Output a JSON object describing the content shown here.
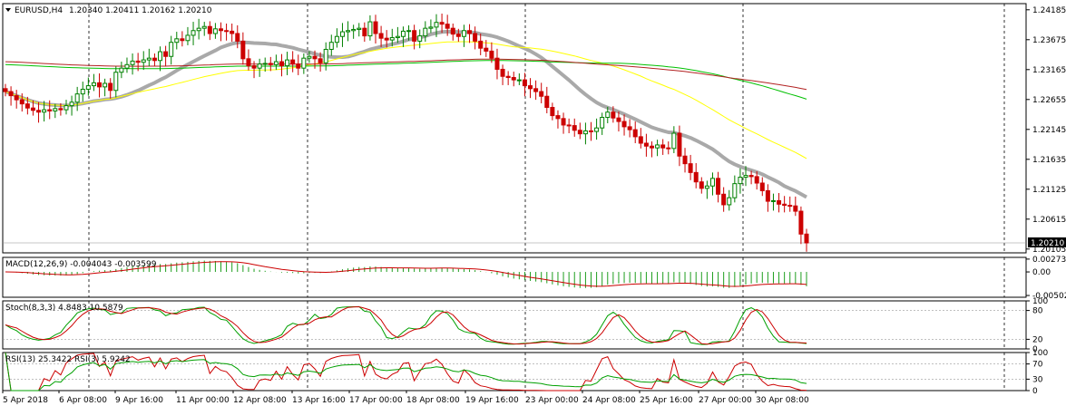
{
  "chart_data": {
    "type": "candlestick",
    "symbol_label": "EURUSD,H4",
    "ohlc_label": "1.20340 1.20411 1.20162 1.20210",
    "price_axis": {
      "ticks": [
        "1.24185",
        "1.23675",
        "1.23165",
        "1.22655",
        "1.22145",
        "1.21635",
        "1.21125",
        "1.20615",
        "1.20105"
      ],
      "tick_values": [
        1.24185,
        1.23675,
        1.23165,
        1.22655,
        1.22145,
        1.21635,
        1.21125,
        1.20615,
        1.20105
      ],
      "range": [
        1.2004,
        1.2429
      ],
      "current_price": "1.20210",
      "current_value": 1.2021
    },
    "time_axis": [
      "5 Apr 2018",
      "6 Apr 08:00",
      "9 Apr 16:00",
      "11 Apr 00:00",
      "12 Apr 08:00",
      "13 Apr 16:00",
      "17 Apr 00:00",
      "18 Apr 08:00",
      "19 Apr 16:00",
      "23 Apr 00:00",
      "24 Apr 08:00",
      "25 Apr 16:00",
      "27 Apr 00:00",
      "30 Apr 08:00"
    ],
    "closes": [
      1.2279,
      1.2272,
      1.2265,
      1.2258,
      1.2251,
      1.2247,
      1.2244,
      1.2248,
      1.2246,
      1.225,
      1.2248,
      1.2255,
      1.2261,
      1.2275,
      1.2283,
      1.2289,
      1.2294,
      1.2287,
      1.2293,
      1.2281,
      1.2312,
      1.2319,
      1.2325,
      1.2331,
      1.2329,
      1.2333,
      1.2336,
      1.2332,
      1.2347,
      1.2339,
      1.2363,
      1.2369,
      1.2366,
      1.2375,
      1.2383,
      1.2387,
      1.239,
      1.2378,
      1.2386,
      1.2383,
      1.2382,
      1.2378,
      1.2365,
      1.2335,
      1.2323,
      1.2319,
      1.2326,
      1.2327,
      1.2325,
      1.233,
      1.2323,
      1.2333,
      1.2326,
      1.2319,
      1.2336,
      1.2339,
      1.2335,
      1.2328,
      1.2351,
      1.2363,
      1.2373,
      1.2381,
      1.2383,
      1.2385,
      1.2387,
      1.2374,
      1.2398,
      1.2378,
      1.237,
      1.2367,
      1.2371,
      1.2373,
      1.2382,
      1.2383,
      1.2365,
      1.2374,
      1.2387,
      1.2389,
      1.2397,
      1.2394,
      1.2387,
      1.2377,
      1.2373,
      1.2383,
      1.2378,
      1.2365,
      1.2353,
      1.2348,
      1.2336,
      1.2317,
      1.2305,
      1.2303,
      1.2299,
      1.2299,
      1.2289,
      1.2284,
      1.2279,
      1.2271,
      1.2252,
      1.2238,
      1.2233,
      1.2222,
      1.2221,
      1.2213,
      1.2207,
      1.2212,
      1.2211,
      1.2217,
      1.2235,
      1.2244,
      1.2234,
      1.2228,
      1.2219,
      1.2214,
      1.2202,
      1.2191,
      1.2186,
      1.2183,
      1.2188,
      1.2183,
      1.2182,
      1.2208,
      1.2169,
      1.2156,
      1.2141,
      1.2125,
      1.2114,
      1.2118,
      1.2131,
      1.2104,
      1.2086,
      1.2098,
      1.2122,
      1.2133,
      1.2136,
      1.2134,
      1.2123,
      1.211,
      1.2092,
      1.2093,
      1.2087,
      1.2085,
      1.2084,
      1.2075,
      1.2036,
      1.2021
    ],
    "indicators": {
      "macd": {
        "label": "MACD(12,26,9) -0.004043 -0.003599",
        "scale": [
          "0.002733",
          "0.00",
          "-0.005024"
        ],
        "range": [
          -0.0054,
          0.0031
        ]
      },
      "stoch": {
        "label": "Stoch(8,3,3) 4.8483 10.5879",
        "scale": [
          "100",
          "80",
          "20",
          "0"
        ],
        "range": [
          0,
          100
        ]
      },
      "rsi": {
        "label": "RSI(13) 25.3422  RSI(3) 5.9242",
        "scale": [
          "100",
          "70",
          "30",
          "0"
        ],
        "range": [
          0,
          100
        ]
      }
    },
    "moving_averages": [
      {
        "color": "#a9a9a9",
        "period": 20
      },
      {
        "color": "#ffff00",
        "period": 50
      },
      {
        "color": "#00c000",
        "period": 100
      },
      {
        "color": "#b22222",
        "period": 200
      }
    ],
    "colors": {
      "bull": "#008000",
      "bear": "#cc0000",
      "grid": "#000000"
    }
  }
}
